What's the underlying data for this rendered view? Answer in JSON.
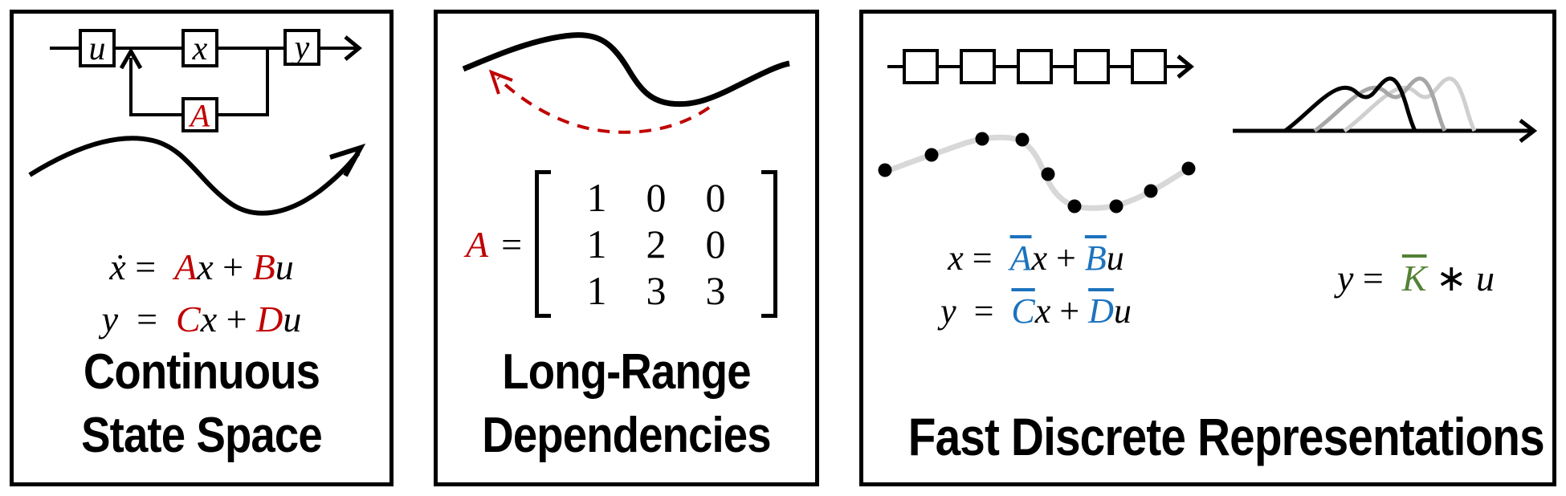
{
  "colors": {
    "red": "#c00000",
    "blue": "#1c73be",
    "green": "#548235",
    "track_gray": "#d8d8d8",
    "kernel_gray": "#a6a6a6",
    "kernel_light": "#cfcfcf",
    "ink": "#000000",
    "background": "#ffffff"
  },
  "panels": [
    {
      "id": "continuous-state-space",
      "title_lines": [
        "Continuous",
        "State Space"
      ],
      "diagram": {
        "block_labels": {
          "u": "u",
          "x": "x",
          "y": "y",
          "A": "A"
        }
      },
      "equations": [
        {
          "segments": [
            {
              "t": "ẋ",
              "cls": "var"
            },
            {
              "t": " =  ",
              "cls": "op"
            },
            {
              "t": "A",
              "cls": "var red"
            },
            {
              "t": "x",
              "cls": "var"
            },
            {
              "t": " + ",
              "cls": "op"
            },
            {
              "t": "B",
              "cls": "var red"
            },
            {
              "t": "u",
              "cls": "var"
            }
          ]
        },
        {
          "segments": [
            {
              "t": "y",
              "cls": "var"
            },
            {
              "t": "  =  ",
              "cls": "op"
            },
            {
              "t": "C",
              "cls": "var red"
            },
            {
              "t": "x",
              "cls": "var"
            },
            {
              "t": " + ",
              "cls": "op"
            },
            {
              "t": "D",
              "cls": "var red"
            },
            {
              "t": "u",
              "cls": "var"
            }
          ]
        }
      ]
    },
    {
      "id": "long-range-dependencies",
      "title_lines": [
        "Long-Range",
        "Dependencies"
      ],
      "matrix": {
        "lhs": "A",
        "eq": "=",
        "rows": [
          [
            "1",
            "0",
            "0"
          ],
          [
            "1",
            "2",
            "0"
          ],
          [
            "1",
            "3",
            "3"
          ]
        ]
      }
    },
    {
      "id": "fast-discrete-representations",
      "title_lines": [
        "Fast Discrete Representations"
      ],
      "equations": [
        {
          "segments": [
            {
              "t": "x",
              "cls": "var"
            },
            {
              "t": " =  ",
              "cls": "op"
            },
            {
              "t": "A",
              "cls": "var blue bar"
            },
            {
              "t": "x",
              "cls": "var"
            },
            {
              "t": " + ",
              "cls": "op"
            },
            {
              "t": "B",
              "cls": "var blue bar"
            },
            {
              "t": "u",
              "cls": "var"
            }
          ]
        },
        {
          "segments": [
            {
              "t": "y",
              "cls": "var"
            },
            {
              "t": "  =  ",
              "cls": "op"
            },
            {
              "t": "C",
              "cls": "var blue bar"
            },
            {
              "t": "x",
              "cls": "var"
            },
            {
              "t": " + ",
              "cls": "op"
            },
            {
              "t": "D",
              "cls": "var blue bar"
            },
            {
              "t": "u",
              "cls": "var"
            }
          ]
        }
      ],
      "kernel_equation": {
        "segments": [
          {
            "t": "y",
            "cls": "var"
          },
          {
            "t": " =  ",
            "cls": "op"
          },
          {
            "t": "K",
            "cls": "var green bar"
          },
          {
            "t": " ∗ ",
            "cls": "op"
          },
          {
            "t": "u",
            "cls": "var"
          }
        ]
      }
    }
  ]
}
